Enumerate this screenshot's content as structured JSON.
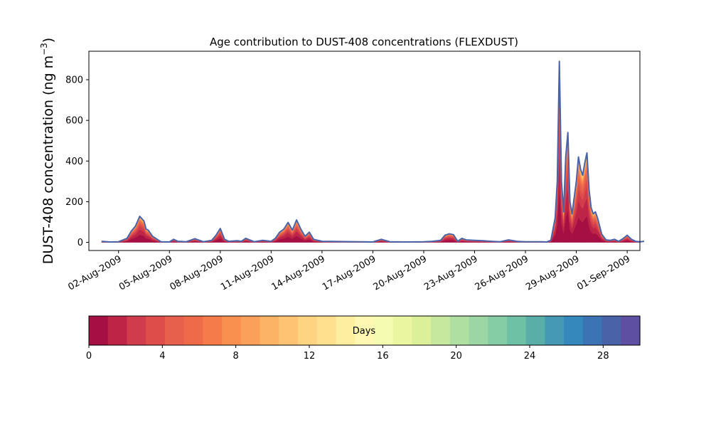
{
  "chart_data": {
    "type": "area",
    "title": "Age contribution to DUST-408 concentrations (FLEXDUST)",
    "ylabel": "DUST-408 concentration (ng m",
    "ylabel_sup": "−3",
    "ylabel_close": ")",
    "xlabel": "",
    "ylim": [
      -40,
      940
    ],
    "yticks": [
      0,
      200,
      400,
      600,
      800
    ],
    "xlim": [
      "2009-07-31T06:00",
      "2009-09-01T18:00"
    ],
    "xticks": [
      {
        "date": "2009-08-02",
        "label": "02-Aug-2009"
      },
      {
        "date": "2009-08-05",
        "label": "05-Aug-2009"
      },
      {
        "date": "2009-08-08",
        "label": "08-Aug-2009"
      },
      {
        "date": "2009-08-11",
        "label": "11-Aug-2009"
      },
      {
        "date": "2009-08-14",
        "label": "14-Aug-2009"
      },
      {
        "date": "2009-08-17",
        "label": "17-Aug-2009"
      },
      {
        "date": "2009-08-20",
        "label": "20-Aug-2009"
      },
      {
        "date": "2009-08-23",
        "label": "23-Aug-2009"
      },
      {
        "date": "2009-08-26",
        "label": "26-Aug-2009"
      },
      {
        "date": "2009-08-29",
        "label": "29-Aug-2009"
      },
      {
        "date": "2009-09-01",
        "label": "01-Sep-2009"
      }
    ],
    "total_line_color": "#4a62a8",
    "total": [
      [
        "2009-08-01T00:00",
        5
      ],
      [
        "2009-08-01T12:00",
        2
      ],
      [
        "2009-08-02T00:00",
        3
      ],
      [
        "2009-08-02T12:00",
        20
      ],
      [
        "2009-08-02T18:00",
        55
      ],
      [
        "2009-08-03T00:00",
        80
      ],
      [
        "2009-08-03T06:00",
        128
      ],
      [
        "2009-08-03T12:00",
        105
      ],
      [
        "2009-08-03T15:00",
        65
      ],
      [
        "2009-08-03T18:00",
        60
      ],
      [
        "2009-08-04T00:00",
        30
      ],
      [
        "2009-08-04T12:00",
        3
      ],
      [
        "2009-08-05T00:00",
        2
      ],
      [
        "2009-08-05T06:00",
        15
      ],
      [
        "2009-08-05T12:00",
        5
      ],
      [
        "2009-08-06T00:00",
        3
      ],
      [
        "2009-08-06T12:00",
        18
      ],
      [
        "2009-08-07T00:00",
        3
      ],
      [
        "2009-08-07T12:00",
        10
      ],
      [
        "2009-08-07T18:00",
        35
      ],
      [
        "2009-08-08T00:00",
        68
      ],
      [
        "2009-08-08T06:00",
        15
      ],
      [
        "2009-08-08T12:00",
        5
      ],
      [
        "2009-08-09T00:00",
        8
      ],
      [
        "2009-08-09T06:00",
        5
      ],
      [
        "2009-08-09T12:00",
        20
      ],
      [
        "2009-08-10T00:00",
        3
      ],
      [
        "2009-08-10T12:00",
        10
      ],
      [
        "2009-08-11T00:00",
        5
      ],
      [
        "2009-08-11T06:00",
        20
      ],
      [
        "2009-08-11T12:00",
        50
      ],
      [
        "2009-08-11T18:00",
        65
      ],
      [
        "2009-08-12T00:00",
        98
      ],
      [
        "2009-08-12T06:00",
        60
      ],
      [
        "2009-08-12T12:00",
        110
      ],
      [
        "2009-08-12T18:00",
        65
      ],
      [
        "2009-08-13T00:00",
        30
      ],
      [
        "2009-08-13T06:00",
        50
      ],
      [
        "2009-08-13T12:00",
        15
      ],
      [
        "2009-08-14T00:00",
        5
      ],
      [
        "2009-08-15T00:00",
        4
      ],
      [
        "2009-08-16T00:00",
        3
      ],
      [
        "2009-08-17T00:00",
        2
      ],
      [
        "2009-08-17T12:00",
        15
      ],
      [
        "2009-08-18T00:00",
        3
      ],
      [
        "2009-08-19T00:00",
        2
      ],
      [
        "2009-08-20T00:00",
        3
      ],
      [
        "2009-08-20T12:00",
        5
      ],
      [
        "2009-08-21T00:00",
        10
      ],
      [
        "2009-08-21T06:00",
        35
      ],
      [
        "2009-08-21T12:00",
        42
      ],
      [
        "2009-08-21T18:00",
        38
      ],
      [
        "2009-08-22T00:00",
        5
      ],
      [
        "2009-08-22T06:00",
        20
      ],
      [
        "2009-08-22T12:00",
        12
      ],
      [
        "2009-08-23T00:00",
        10
      ],
      [
        "2009-08-23T12:00",
        8
      ],
      [
        "2009-08-24T00:00",
        5
      ],
      [
        "2009-08-24T12:00",
        3
      ],
      [
        "2009-08-25T00:00",
        12
      ],
      [
        "2009-08-25T12:00",
        5
      ],
      [
        "2009-08-26T00:00",
        3
      ],
      [
        "2009-08-27T00:00",
        3
      ],
      [
        "2009-08-27T06:00",
        2
      ],
      [
        "2009-08-27T12:00",
        10
      ],
      [
        "2009-08-27T18:00",
        120
      ],
      [
        "2009-08-27T21:00",
        300
      ],
      [
        "2009-08-28T00:00",
        890
      ],
      [
        "2009-08-28T03:00",
        300
      ],
      [
        "2009-08-28T06:00",
        150
      ],
      [
        "2009-08-28T09:00",
        420
      ],
      [
        "2009-08-28T12:00",
        540
      ],
      [
        "2009-08-28T15:00",
        200
      ],
      [
        "2009-08-28T18:00",
        140
      ],
      [
        "2009-08-29T00:00",
        300
      ],
      [
        "2009-08-29T03:00",
        420
      ],
      [
        "2009-08-29T06:00",
        360
      ],
      [
        "2009-08-29T09:00",
        330
      ],
      [
        "2009-08-29T12:00",
        390
      ],
      [
        "2009-08-29T15:00",
        440
      ],
      [
        "2009-08-29T18:00",
        260
      ],
      [
        "2009-08-29T21:00",
        170
      ],
      [
        "2009-08-30T00:00",
        140
      ],
      [
        "2009-08-30T03:00",
        150
      ],
      [
        "2009-08-30T06:00",
        120
      ],
      [
        "2009-08-30T12:00",
        40
      ],
      [
        "2009-08-30T18:00",
        12
      ],
      [
        "2009-08-31T00:00",
        10
      ],
      [
        "2009-08-31T06:00",
        15
      ],
      [
        "2009-08-31T12:00",
        5
      ],
      [
        "2009-08-31T18:00",
        18
      ],
      [
        "2009-09-01T00:00",
        35
      ],
      [
        "2009-09-01T06:00",
        15
      ],
      [
        "2009-09-01T12:00",
        5
      ],
      [
        "2009-09-01T18:00",
        3
      ],
      [
        "2009-09-02T00:00",
        5
      ]
    ],
    "colorbar": {
      "label": "Days",
      "range": [
        0,
        30
      ],
      "ticks": [
        0,
        4,
        8,
        12,
        16,
        20,
        24,
        28
      ],
      "colors": [
        "#a50f44",
        "#be2446",
        "#d03c4b",
        "#de4d4a",
        "#e7604c",
        "#ee6a48",
        "#f67b4a",
        "#f9904f",
        "#fba05b",
        "#fdb365",
        "#fec473",
        "#fed382",
        "#fee08f",
        "#feee9f",
        "#fff8b3",
        "#f6fbb2",
        "#eaf6a0",
        "#dcf09a",
        "#c6e89e",
        "#b0dfa2",
        "#9bd6a4",
        "#85cda4",
        "#6ec1a5",
        "#5aaea8",
        "#4599b4",
        "#3588bb",
        "#3c73b4",
        "#4a62a8",
        "#5e4fa2"
      ]
    }
  }
}
